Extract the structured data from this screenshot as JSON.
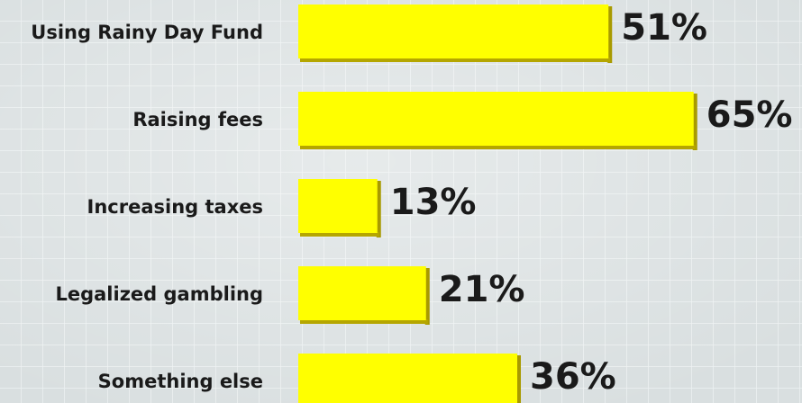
{
  "chart_data": {
    "type": "bar",
    "orientation": "horizontal",
    "categories": [
      "Using Rainy Day Fund",
      "Raising fees",
      "Increasing taxes",
      "Legalized gambling",
      "Something else"
    ],
    "values": [
      51,
      65,
      13,
      21,
      36
    ],
    "value_labels": [
      "51%",
      "65%",
      "13%",
      "21%",
      "36%"
    ],
    "color": "#ffff00"
  }
}
